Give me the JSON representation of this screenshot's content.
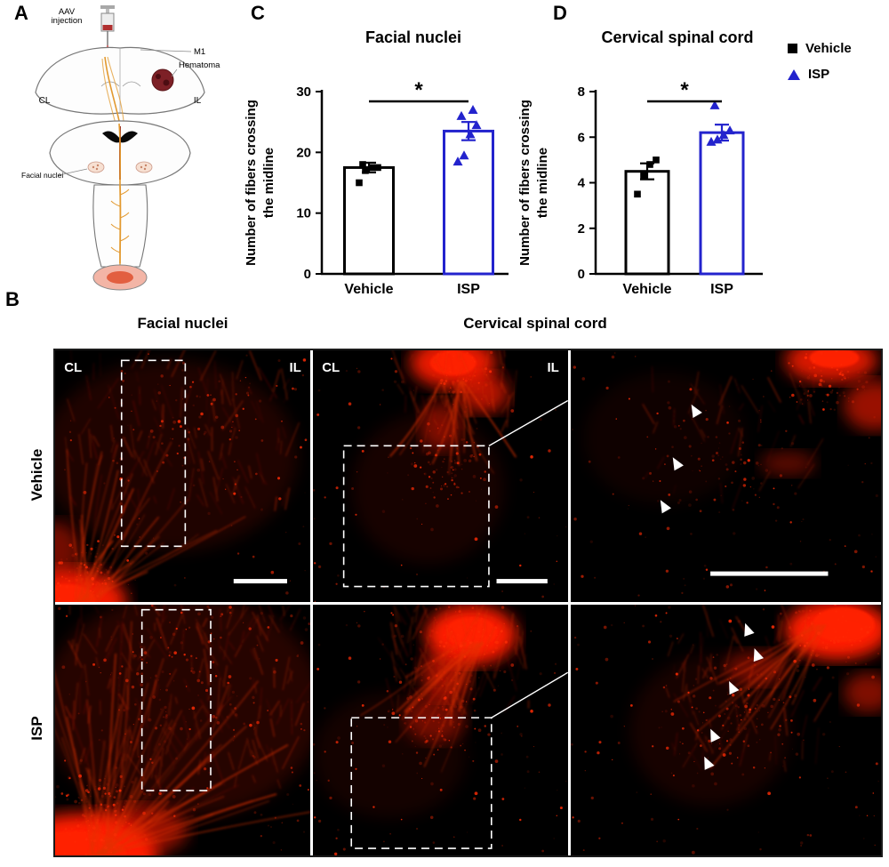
{
  "figure": {
    "panel_labels": {
      "a": "A",
      "b": "B",
      "c": "C",
      "d": "D"
    }
  },
  "panel_a": {
    "aav_line1": "AAV",
    "aav_line2": "injection",
    "m1": "M1",
    "hematoma": "Hematoma",
    "cl": "CL",
    "il": "IL",
    "facial_nuclei": "Facial nuclei"
  },
  "legend": {
    "items": [
      {
        "label": "Vehicle",
        "marker": "square",
        "color": "#000000"
      },
      {
        "label": "ISP",
        "marker": "triangle",
        "color": "#2323cd"
      }
    ]
  },
  "panel_b": {
    "heading_left": "Facial nuclei",
    "heading_right": "Cervical spinal cord",
    "rows": [
      "Vehicle",
      "ISP"
    ],
    "corner_left": "CL",
    "corner_right": "IL",
    "arrowhead_counts": {
      "vehicle_zoom": 3,
      "isp_zoom": 5
    }
  },
  "chart_data": [
    {
      "type": "bar",
      "panel": "C",
      "title": "Facial nuclei",
      "categories": [
        "Vehicle",
        "ISP"
      ],
      "values": [
        17.5,
        23.5
      ],
      "errors": [
        0.8,
        1.5
      ],
      "points": [
        [
          15,
          17,
          17.5,
          17.5,
          18
        ],
        [
          18.5,
          19.5,
          23,
          24.5,
          26,
          27
        ]
      ],
      "markers": [
        "square",
        "triangle"
      ],
      "colors": [
        "#000000",
        "#2323cd"
      ],
      "ylabel_line1": "Number of fibers crossing",
      "ylabel_line2": "the midline",
      "ylim": [
        0,
        30
      ],
      "yticks": [
        0,
        10,
        20,
        30
      ],
      "significance": "*"
    },
    {
      "type": "bar",
      "panel": "D",
      "title": "Cervical spinal cord",
      "categories": [
        "Vehicle",
        "ISP"
      ],
      "values": [
        4.5,
        6.2
      ],
      "errors": [
        0.35,
        0.35
      ],
      "points": [
        [
          3.5,
          4.3,
          4.8,
          5.0
        ],
        [
          5.8,
          5.9,
          6.1,
          6.3,
          7.4
        ]
      ],
      "markers": [
        "square",
        "triangle"
      ],
      "colors": [
        "#000000",
        "#2323cd"
      ],
      "ylabel_line1": "Number of fibers crossing",
      "ylabel_line2": "the midline",
      "ylim": [
        0,
        8
      ],
      "yticks": [
        0,
        2,
        4,
        6,
        8
      ],
      "significance": "*"
    }
  ]
}
